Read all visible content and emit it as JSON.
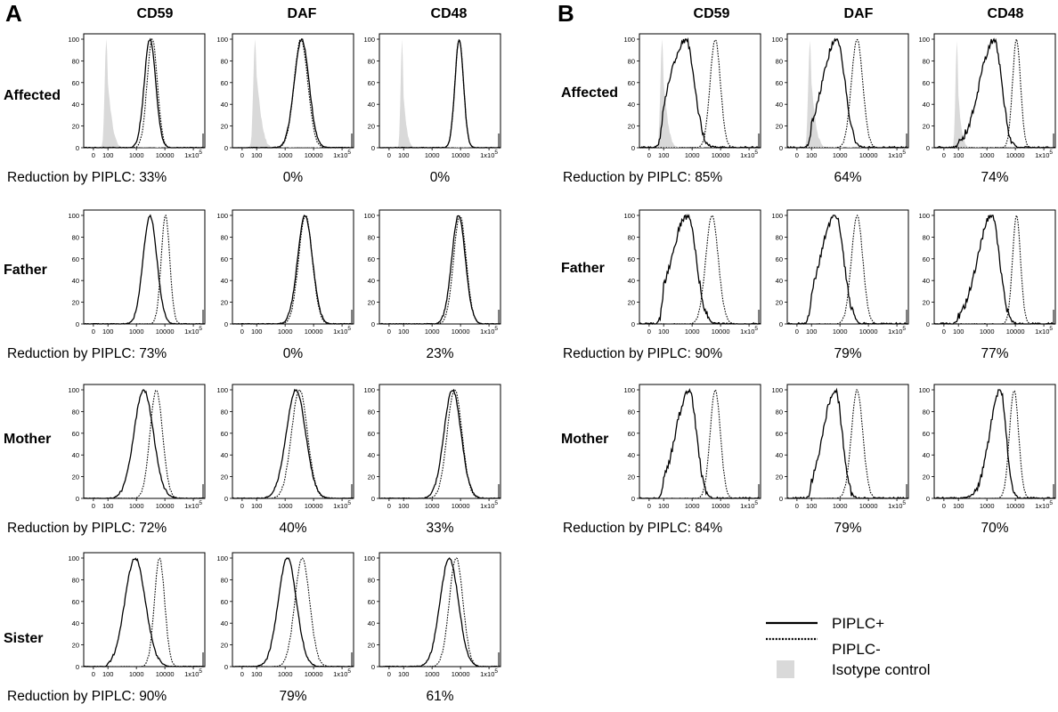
{
  "figure": {
    "panel_labels": [
      "A",
      "B"
    ],
    "column_headers": [
      "CD59",
      "DAF",
      "CD48"
    ],
    "row_labels": [
      "Affected",
      "Father",
      "Mother",
      "Sister"
    ],
    "reduction_prefix": "Reduction by PIPLC: ",
    "legend": [
      {
        "label": "PIPLC+",
        "style": "solid"
      },
      {
        "label": "PIPLC-",
        "style": "dotted"
      },
      {
        "label": "Isotype control",
        "style": "filled"
      }
    ],
    "colors": {
      "solid": "#000000",
      "dotted": "#000000",
      "isotype": "#d9d9d9"
    }
  },
  "chart_data": {
    "type": "line",
    "description_units": "fluorescence intensity (log scale) vs normalized count (% of max)",
    "x_ticks": [
      "0",
      "100",
      "1000",
      "10000",
      "1x10^5"
    ],
    "x_tick_labels": [
      {
        "base": "0"
      },
      {
        "base": "100"
      },
      {
        "base": "1000"
      },
      {
        "base": "10000"
      },
      {
        "base": "1x10",
        "sup": "5"
      }
    ],
    "y_ticks": [
      "0",
      "20",
      "40",
      "60",
      "80",
      "100"
    ],
    "ylim": [
      0,
      100
    ],
    "panels": [
      {
        "panel": "A",
        "rows": [
          {
            "subject": "Affected",
            "reductions": [
              "33%",
              "0%",
              "0%"
            ],
            "plots": [
              {
                "marker": "CD59",
                "solid": {
                  "peak": 3000,
                  "width": 0.2,
                  "shape": "sym"
                },
                "dotted": {
                  "peak": 3600,
                  "width": 0.18,
                  "shape": "sym"
                },
                "isotype": {
                  "peak": 60,
                  "width": 0.22
                }
              },
              {
                "marker": "DAF",
                "solid": {
                  "peak": 3800,
                  "width": 0.26,
                  "shape": "sym"
                },
                "dotted": {
                  "peak": 3600,
                  "width": 0.24,
                  "shape": "sym"
                },
                "isotype": {
                  "peak": 60,
                  "width": 0.24
                }
              },
              {
                "marker": "CD48",
                "solid": {
                  "peak": 9000,
                  "width": 0.15,
                  "shape": "sym"
                },
                "dotted": {
                  "peak": 9000,
                  "width": 0.15,
                  "shape": "sym"
                },
                "isotype": {
                  "peak": 60,
                  "width": 0.18
                }
              }
            ]
          },
          {
            "subject": "Father",
            "reductions": [
              "73%",
              "0%",
              "23%"
            ],
            "plots": [
              {
                "marker": "CD59",
                "solid": {
                  "peak": 3000,
                  "width": 0.24,
                  "shape": "sym"
                },
                "dotted": {
                  "peak": 10500,
                  "width": 0.15,
                  "shape": "sym"
                }
              },
              {
                "marker": "DAF",
                "solid": {
                  "peak": 5000,
                  "width": 0.26,
                  "shape": "sym"
                },
                "dotted": {
                  "peak": 5200,
                  "width": 0.24,
                  "shape": "sym"
                }
              },
              {
                "marker": "CD48",
                "solid": {
                  "peak": 8500,
                  "width": 0.24,
                  "shape": "sym"
                },
                "dotted": {
                  "peak": 9500,
                  "width": 0.22,
                  "shape": "sym"
                }
              }
            ]
          },
          {
            "subject": "Mother",
            "reductions": [
              "72%",
              "40%",
              "33%"
            ],
            "plots": [
              {
                "marker": "CD59",
                "solid": {
                  "peak": 1800,
                  "width": 0.34,
                  "shape": "sym"
                },
                "dotted": {
                  "peak": 5000,
                  "width": 0.22,
                  "shape": "sym"
                }
              },
              {
                "marker": "DAF",
                "solid": {
                  "peak": 2400,
                  "width": 0.34,
                  "shape": "sym"
                },
                "dotted": {
                  "peak": 3200,
                  "width": 0.28,
                  "shape": "sym"
                }
              },
              {
                "marker": "CD48",
                "solid": {
                  "peak": 5200,
                  "width": 0.3,
                  "shape": "sym"
                },
                "dotted": {
                  "peak": 6200,
                  "width": 0.26,
                  "shape": "sym"
                }
              }
            ]
          },
          {
            "subject": "Sister",
            "reductions": [
              "90%",
              "79%",
              "61%"
            ],
            "plots": [
              {
                "marker": "CD59",
                "solid": {
                  "peak": 900,
                  "width": 0.36,
                  "shape": "sym"
                },
                "dotted": {
                  "peak": 6500,
                  "width": 0.18,
                  "shape": "sym"
                }
              },
              {
                "marker": "DAF",
                "solid": {
                  "peak": 1200,
                  "width": 0.32,
                  "shape": "sym"
                },
                "dotted": {
                  "peak": 4000,
                  "width": 0.26,
                  "shape": "sym"
                }
              },
              {
                "marker": "CD48",
                "solid": {
                  "peak": 4000,
                  "width": 0.32,
                  "shape": "sym"
                },
                "dotted": {
                  "peak": 7000,
                  "width": 0.24,
                  "shape": "sym"
                }
              }
            ]
          }
        ]
      },
      {
        "panel": "B",
        "rows": [
          {
            "subject": "Affected",
            "reductions": [
              "85%",
              "64%",
              "74%"
            ],
            "plots": [
              {
                "marker": "CD59",
                "solid": {
                  "peak": 600,
                  "width": 0.55,
                  "shape": "skewR"
                },
                "dotted": {
                  "peak": 6500,
                  "width": 0.18,
                  "shape": "sym"
                },
                "isotype": {
                  "peak": 60,
                  "width": 0.22
                }
              },
              {
                "marker": "DAF",
                "solid": {
                  "peak": 800,
                  "width": 0.5,
                  "shape": "skewR"
                },
                "dotted": {
                  "peak": 4000,
                  "width": 0.2,
                  "shape": "sym"
                },
                "isotype": {
                  "peak": 60,
                  "width": 0.22
                }
              },
              {
                "marker": "CD48",
                "solid": {
                  "peak": 1800,
                  "width": 0.48,
                  "shape": "skewR"
                },
                "dotted": {
                  "peak": 11000,
                  "width": 0.14,
                  "shape": "sym"
                },
                "isotype": {
                  "peak": 60,
                  "width": 0.18
                }
              }
            ]
          },
          {
            "subject": "Father",
            "reductions": [
              "90%",
              "79%",
              "77%"
            ],
            "plots": [
              {
                "marker": "CD59",
                "solid": {
                  "peak": 700,
                  "width": 0.55,
                  "shape": "skewR"
                },
                "dotted": {
                  "peak": 5000,
                  "width": 0.22,
                  "shape": "sym"
                }
              },
              {
                "marker": "DAF",
                "solid": {
                  "peak": 700,
                  "width": 0.52,
                  "shape": "skewR"
                },
                "dotted": {
                  "peak": 4000,
                  "width": 0.2,
                  "shape": "sym"
                }
              },
              {
                "marker": "CD48",
                "solid": {
                  "peak": 1500,
                  "width": 0.48,
                  "shape": "skewR"
                },
                "dotted": {
                  "peak": 11000,
                  "width": 0.14,
                  "shape": "sym"
                }
              }
            ]
          },
          {
            "subject": "Mother",
            "reductions": [
              "84%",
              "79%",
              "70%"
            ],
            "plots": [
              {
                "marker": "CD59",
                "solid": {
                  "peak": 800,
                  "width": 0.46,
                  "shape": "skewR"
                },
                "dotted": {
                  "peak": 6500,
                  "width": 0.18,
                  "shape": "sym"
                }
              },
              {
                "marker": "DAF",
                "solid": {
                  "peak": 700,
                  "width": 0.42,
                  "shape": "skewR"
                },
                "dotted": {
                  "peak": 4000,
                  "width": 0.2,
                  "shape": "sym"
                }
              },
              {
                "marker": "CD48",
                "solid": {
                  "peak": 3000,
                  "width": 0.36,
                  "shape": "skewR"
                },
                "dotted": {
                  "peak": 9000,
                  "width": 0.16,
                  "shape": "sym"
                }
              }
            ]
          }
        ]
      }
    ]
  }
}
